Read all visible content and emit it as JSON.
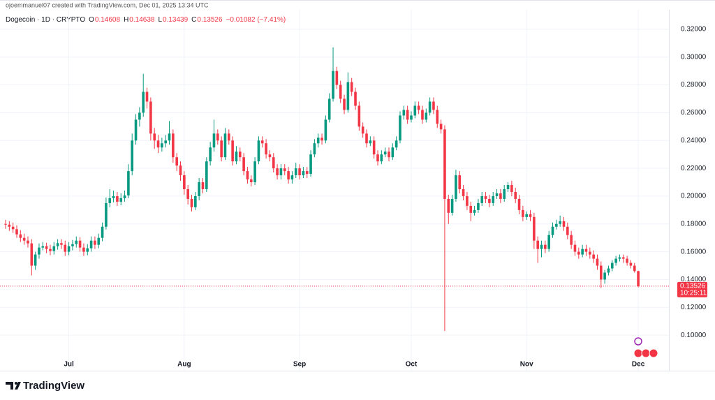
{
  "header": {
    "credit": "ojoemmanuel07 created with TradingView.com, Dec 01, 2025 13:34 UTC",
    "symbol": "Dogecoin · 1D · CRYPTO",
    "ohlc": [
      {
        "label": "O",
        "value": "0.14608"
      },
      {
        "label": "H",
        "value": "0.14638"
      },
      {
        "label": "L",
        "value": "0.13439"
      },
      {
        "label": "C",
        "value": "0.13526"
      }
    ],
    "change": "−0.01082 (−7.41%)"
  },
  "brand": "TradingView",
  "chart_data": {
    "type": "candlestick",
    "up_color": "#089981",
    "down_color": "#f23645",
    "ylim": [
      0.0825,
      0.3285
    ],
    "yticks": [
      {
        "value": 0.1,
        "label": "0.10000"
      },
      {
        "value": 0.12,
        "label": "0.12000"
      },
      {
        "value": 0.14,
        "label": "0.14000"
      },
      {
        "value": 0.16,
        "label": "0.16000"
      },
      {
        "value": 0.18,
        "label": "0.18000"
      },
      {
        "value": 0.2,
        "label": "0.20000"
      },
      {
        "value": 0.22,
        "label": "0.22000"
      },
      {
        "value": 0.24,
        "label": "0.24000"
      },
      {
        "value": 0.26,
        "label": "0.26000"
      },
      {
        "value": 0.28,
        "label": "0.28000"
      },
      {
        "value": 0.3,
        "label": "0.30000"
      },
      {
        "value": 0.32,
        "label": "0.32000"
      }
    ],
    "xticks": [
      {
        "value": 17,
        "label": "Jul"
      },
      {
        "value": 48,
        "label": "Aug"
      },
      {
        "value": 79,
        "label": "Sep"
      },
      {
        "value": 109,
        "label": "Oct"
      },
      {
        "value": 140,
        "label": "Nov"
      },
      {
        "value": 170,
        "label": "Dec"
      }
    ],
    "last_price": 0.13526,
    "countdown": "10:25:11",
    "candles": [
      [
        0.18,
        0.183,
        0.1765,
        0.1795
      ],
      [
        0.1795,
        0.182,
        0.175,
        0.178
      ],
      [
        0.178,
        0.181,
        0.1735,
        0.1762
      ],
      [
        0.1762,
        0.179,
        0.17,
        0.1725
      ],
      [
        0.1725,
        0.1755,
        0.167,
        0.17
      ],
      [
        0.17,
        0.173,
        0.165,
        0.168
      ],
      [
        0.168,
        0.171,
        0.163,
        0.166
      ],
      [
        0.166,
        0.169,
        0.143,
        0.15
      ],
      [
        0.15,
        0.16,
        0.147,
        0.158
      ],
      [
        0.158,
        0.166,
        0.155,
        0.163
      ],
      [
        0.163,
        0.167,
        0.161,
        0.164
      ],
      [
        0.164,
        0.1665,
        0.159,
        0.162
      ],
      [
        0.162,
        0.165,
        0.1575,
        0.1605
      ],
      [
        0.1605,
        0.167,
        0.158,
        0.164
      ],
      [
        0.164,
        0.169,
        0.1615,
        0.1662
      ],
      [
        0.1662,
        0.169,
        0.162,
        0.165
      ],
      [
        0.165,
        0.168,
        0.157,
        0.16
      ],
      [
        0.16,
        0.167,
        0.1575,
        0.164
      ],
      [
        0.164,
        0.1685,
        0.161,
        0.1655
      ],
      [
        0.1655,
        0.171,
        0.163,
        0.168
      ],
      [
        0.168,
        0.1705,
        0.16,
        0.163
      ],
      [
        0.163,
        0.166,
        0.157,
        0.16
      ],
      [
        0.16,
        0.1655,
        0.1575,
        0.1625
      ],
      [
        0.1625,
        0.171,
        0.16,
        0.168
      ],
      [
        0.168,
        0.171,
        0.162,
        0.165
      ],
      [
        0.165,
        0.173,
        0.1625,
        0.17
      ],
      [
        0.17,
        0.181,
        0.1675,
        0.178
      ],
      [
        0.178,
        0.199,
        0.176,
        0.195
      ],
      [
        0.195,
        0.205,
        0.192,
        0.1985
      ],
      [
        0.1985,
        0.204,
        0.1955,
        0.2
      ],
      [
        0.2,
        0.203,
        0.193,
        0.196
      ],
      [
        0.196,
        0.202,
        0.1935,
        0.1985
      ],
      [
        0.1985,
        0.204,
        0.196,
        0.2005
      ],
      [
        0.2005,
        0.223,
        0.1985,
        0.218
      ],
      [
        0.218,
        0.245,
        0.215,
        0.24
      ],
      [
        0.24,
        0.259,
        0.237,
        0.255
      ],
      [
        0.255,
        0.264,
        0.25,
        0.26
      ],
      [
        0.26,
        0.288,
        0.257,
        0.275
      ],
      [
        0.275,
        0.278,
        0.263,
        0.268
      ],
      [
        0.268,
        0.271,
        0.24,
        0.245
      ],
      [
        0.245,
        0.249,
        0.234,
        0.24
      ],
      [
        0.24,
        0.244,
        0.231,
        0.235
      ],
      [
        0.235,
        0.242,
        0.232,
        0.238
      ],
      [
        0.238,
        0.244,
        0.235,
        0.24
      ],
      [
        0.24,
        0.254,
        0.237,
        0.245
      ],
      [
        0.245,
        0.248,
        0.224,
        0.228
      ],
      [
        0.228,
        0.231,
        0.218,
        0.222
      ],
      [
        0.222,
        0.225,
        0.211,
        0.215
      ],
      [
        0.215,
        0.218,
        0.201,
        0.205
      ],
      [
        0.205,
        0.208,
        0.194,
        0.198
      ],
      [
        0.198,
        0.201,
        0.189,
        0.192
      ],
      [
        0.192,
        0.203,
        0.19,
        0.2
      ],
      [
        0.2,
        0.213,
        0.197,
        0.21
      ],
      [
        0.21,
        0.213,
        0.202,
        0.205
      ],
      [
        0.205,
        0.228,
        0.203,
        0.225
      ],
      [
        0.225,
        0.239,
        0.222,
        0.235
      ],
      [
        0.235,
        0.255,
        0.232,
        0.245
      ],
      [
        0.245,
        0.248,
        0.237,
        0.24
      ],
      [
        0.24,
        0.243,
        0.225,
        0.228
      ],
      [
        0.228,
        0.249,
        0.226,
        0.245
      ],
      [
        0.245,
        0.248,
        0.237,
        0.24
      ],
      [
        0.24,
        0.243,
        0.222,
        0.225
      ],
      [
        0.225,
        0.236,
        0.223,
        0.232
      ],
      [
        0.232,
        0.235,
        0.225,
        0.228
      ],
      [
        0.228,
        0.231,
        0.215,
        0.218
      ],
      [
        0.218,
        0.221,
        0.209,
        0.212
      ],
      [
        0.212,
        0.215,
        0.207,
        0.21
      ],
      [
        0.21,
        0.228,
        0.208,
        0.225
      ],
      [
        0.225,
        0.243,
        0.223,
        0.24
      ],
      [
        0.24,
        0.243,
        0.235,
        0.238
      ],
      [
        0.238,
        0.241,
        0.227,
        0.23
      ],
      [
        0.23,
        0.233,
        0.225,
        0.228
      ],
      [
        0.228,
        0.231,
        0.217,
        0.22
      ],
      [
        0.22,
        0.223,
        0.212,
        0.215
      ],
      [
        0.215,
        0.223,
        0.212,
        0.22
      ],
      [
        0.22,
        0.223,
        0.215,
        0.218
      ],
      [
        0.218,
        0.221,
        0.209,
        0.212
      ],
      [
        0.212,
        0.218,
        0.209,
        0.215
      ],
      [
        0.215,
        0.224,
        0.213,
        0.22
      ],
      [
        0.22,
        0.223,
        0.212,
        0.215
      ],
      [
        0.215,
        0.221,
        0.213,
        0.218
      ],
      [
        0.218,
        0.221,
        0.213,
        0.216
      ],
      [
        0.216,
        0.233,
        0.214,
        0.23
      ],
      [
        0.23,
        0.241,
        0.228,
        0.238
      ],
      [
        0.238,
        0.245,
        0.235,
        0.242
      ],
      [
        0.242,
        0.245,
        0.237,
        0.24
      ],
      [
        0.24,
        0.258,
        0.238,
        0.255
      ],
      [
        0.255,
        0.274,
        0.253,
        0.27
      ],
      [
        0.27,
        0.307,
        0.268,
        0.29
      ],
      [
        0.29,
        0.293,
        0.277,
        0.28
      ],
      [
        0.28,
        0.283,
        0.267,
        0.27
      ],
      [
        0.27,
        0.273,
        0.259,
        0.262
      ],
      [
        0.262,
        0.289,
        0.26,
        0.282
      ],
      [
        0.282,
        0.285,
        0.272,
        0.275
      ],
      [
        0.275,
        0.278,
        0.262,
        0.265
      ],
      [
        0.265,
        0.268,
        0.247,
        0.25
      ],
      [
        0.25,
        0.253,
        0.242,
        0.245
      ],
      [
        0.245,
        0.248,
        0.235,
        0.238
      ],
      [
        0.238,
        0.243,
        0.236,
        0.24
      ],
      [
        0.24,
        0.243,
        0.227,
        0.23
      ],
      [
        0.23,
        0.233,
        0.222,
        0.225
      ],
      [
        0.225,
        0.233,
        0.223,
        0.23
      ],
      [
        0.23,
        0.235,
        0.228,
        0.232
      ],
      [
        0.232,
        0.235,
        0.225,
        0.228
      ],
      [
        0.228,
        0.238,
        0.226,
        0.235
      ],
      [
        0.235,
        0.243,
        0.233,
        0.24
      ],
      [
        0.24,
        0.261,
        0.238,
        0.258
      ],
      [
        0.258,
        0.265,
        0.255,
        0.262
      ],
      [
        0.262,
        0.265,
        0.252,
        0.255
      ],
      [
        0.255,
        0.261,
        0.253,
        0.258
      ],
      [
        0.258,
        0.268,
        0.256,
        0.265
      ],
      [
        0.265,
        0.268,
        0.259,
        0.262
      ],
      [
        0.262,
        0.265,
        0.252,
        0.255
      ],
      [
        0.255,
        0.263,
        0.253,
        0.26
      ],
      [
        0.26,
        0.271,
        0.258,
        0.268
      ],
      [
        0.268,
        0.271,
        0.259,
        0.262
      ],
      [
        0.262,
        0.265,
        0.249,
        0.252
      ],
      [
        0.252,
        0.255,
        0.245,
        0.248
      ],
      [
        0.248,
        0.251,
        0.103,
        0.198
      ],
      [
        0.198,
        0.201,
        0.18,
        0.188
      ],
      [
        0.188,
        0.201,
        0.186,
        0.198
      ],
      [
        0.198,
        0.219,
        0.196,
        0.215
      ],
      [
        0.215,
        0.218,
        0.202,
        0.205
      ],
      [
        0.205,
        0.208,
        0.197,
        0.2
      ],
      [
        0.2,
        0.203,
        0.19,
        0.193
      ],
      [
        0.193,
        0.196,
        0.182,
        0.188
      ],
      [
        0.188,
        0.193,
        0.186,
        0.19
      ],
      [
        0.19,
        0.198,
        0.188,
        0.195
      ],
      [
        0.195,
        0.203,
        0.193,
        0.2
      ],
      [
        0.2,
        0.203,
        0.195,
        0.198
      ],
      [
        0.198,
        0.201,
        0.192,
        0.195
      ],
      [
        0.195,
        0.203,
        0.193,
        0.2
      ],
      [
        0.2,
        0.205,
        0.198,
        0.202
      ],
      [
        0.202,
        0.205,
        0.195,
        0.198
      ],
      [
        0.198,
        0.208,
        0.196,
        0.205
      ],
      [
        0.205,
        0.21,
        0.203,
        0.208
      ],
      [
        0.208,
        0.211,
        0.2,
        0.203
      ],
      [
        0.203,
        0.206,
        0.195,
        0.198
      ],
      [
        0.198,
        0.201,
        0.187,
        0.19
      ],
      [
        0.19,
        0.193,
        0.182,
        0.185
      ],
      [
        0.185,
        0.189,
        0.183,
        0.187
      ],
      [
        0.187,
        0.19,
        0.182,
        0.185
      ],
      [
        0.185,
        0.188,
        0.162,
        0.168
      ],
      [
        0.168,
        0.171,
        0.152,
        0.162
      ],
      [
        0.162,
        0.168,
        0.156,
        0.165
      ],
      [
        0.165,
        0.168,
        0.159,
        0.162
      ],
      [
        0.162,
        0.175,
        0.16,
        0.172
      ],
      [
        0.172,
        0.181,
        0.17,
        0.178
      ],
      [
        0.178,
        0.183,
        0.176,
        0.18
      ],
      [
        0.18,
        0.186,
        0.178,
        0.182
      ],
      [
        0.182,
        0.185,
        0.175,
        0.178
      ],
      [
        0.178,
        0.181,
        0.169,
        0.172
      ],
      [
        0.172,
        0.175,
        0.162,
        0.165
      ],
      [
        0.165,
        0.168,
        0.157,
        0.16
      ],
      [
        0.16,
        0.163,
        0.155,
        0.158
      ],
      [
        0.158,
        0.165,
        0.156,
        0.162
      ],
      [
        0.162,
        0.165,
        0.157,
        0.16
      ],
      [
        0.16,
        0.163,
        0.155,
        0.158
      ],
      [
        0.158,
        0.161,
        0.152,
        0.155
      ],
      [
        0.155,
        0.158,
        0.147,
        0.15
      ],
      [
        0.15,
        0.153,
        0.134,
        0.14
      ],
      [
        0.14,
        0.147,
        0.137,
        0.145
      ],
      [
        0.145,
        0.15,
        0.143,
        0.148
      ],
      [
        0.148,
        0.154,
        0.146,
        0.152
      ],
      [
        0.152,
        0.157,
        0.15,
        0.155
      ],
      [
        0.155,
        0.158,
        0.153,
        0.156
      ],
      [
        0.156,
        0.158,
        0.152,
        0.155
      ],
      [
        0.155,
        0.157,
        0.15,
        0.152
      ],
      [
        0.152,
        0.154,
        0.148,
        0.15
      ],
      [
        0.15,
        0.152,
        0.145,
        0.1461
      ],
      [
        0.14608,
        0.14638,
        0.13439,
        0.13526
      ]
    ]
  }
}
